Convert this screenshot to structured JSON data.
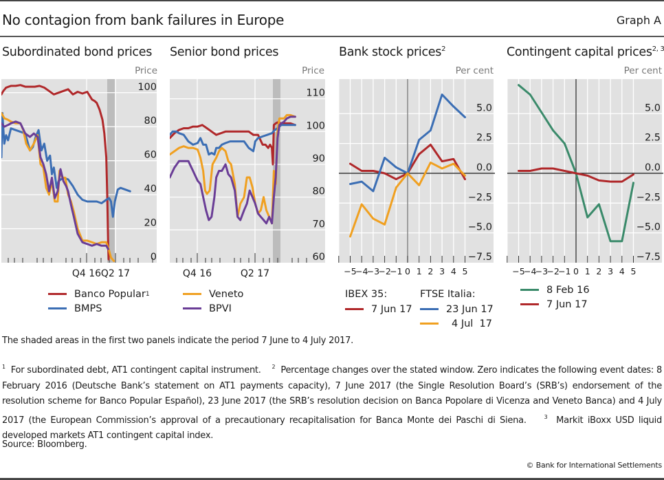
{
  "header": {
    "title": "No contagion from bank failures in Europe",
    "graph_label": "Graph A"
  },
  "colors": {
    "red": "#b0282a",
    "blue": "#3b6eb4",
    "orange": "#f0a020",
    "purple": "#6a3d96",
    "green": "#3a8a6a",
    "plot_bg": "#e1e1e1",
    "shade": "#bcbcbc"
  },
  "panels": [
    {
      "title": "Subordinated bond prices",
      "sup": "",
      "unit": "Price"
    },
    {
      "title": "Senior bond prices",
      "sup": "",
      "unit": "Price"
    },
    {
      "title": "Bank stock prices",
      "sup": "2",
      "unit": "Per cent"
    },
    {
      "title": "Contingent capital prices",
      "sup": "2, 3",
      "unit": "Per cent"
    }
  ],
  "legends": {
    "panel1": [
      {
        "label": "Banco Popular",
        "sup": "1",
        "color": "#b0282a"
      },
      {
        "label": "BMPS",
        "sup": "",
        "color": "#3b6eb4"
      }
    ],
    "panel2": [
      {
        "label": "Veneto",
        "sup": "",
        "color": "#f0a020"
      },
      {
        "label": "BPVI",
        "sup": "",
        "color": "#6a3d96"
      }
    ],
    "panel3": {
      "group1_title": "IBEX 35:",
      "group1": [
        {
          "label": "7 Jun 17",
          "color": "#b0282a"
        }
      ],
      "group2_title": "FTSE Italia:",
      "group2": [
        {
          "label": "23 Jun 17",
          "color": "#3b6eb4"
        },
        {
          "label": "4 Jul  17",
          "color": "#f0a020"
        }
      ]
    },
    "panel4": [
      {
        "label": "8 Feb 16",
        "color": "#3a8a6a"
      },
      {
        "label": "7 Jun 17",
        "color": "#b0282a"
      }
    ]
  },
  "notes": {
    "shaded": "The shaded areas in the first two panels indicate the period 7 June to 4 July 2017.",
    "fn1_mark": "1",
    "fn1": "For subordinated debt, AT1 contingent capital instrument.",
    "fn2_mark": "2",
    "fn2": "Percentage changes over the stated window. Zero indicates the following event dates: 8 February 2016 (Deutsche Bank’s statement on AT1 payments capacity), 7 June 2017 (the Single Resolution Board’s (SRB’s) endorsement of the resolution scheme for Banco Popular Español), 23 June 2017 (the SRB’s resolution decision on Banca Popolare di Vicenza and Veneto Banca) and 4 July 2017 (the European Commission’s approval of a precautionary recapitalisation for Banca Monte dei Paschi di Siena.",
    "fn3_mark": "3",
    "fn3": "Markit iBoxx USD liquid developed markets AT1 contingent capital index.",
    "source": "Source: Bloomberg.",
    "copyright": "© Bank for International Settlements"
  },
  "chart_data": [
    {
      "type": "line",
      "title": "Subordinated bond prices",
      "ylabel": "Price",
      "ylim": [
        0,
        108
      ],
      "yticks": [
        0,
        20,
        40,
        60,
        80,
        100
      ],
      "xlabel": "",
      "x_domain": [
        0,
        12
      ],
      "x_note": "months from Jul 2016 to Jul 2017 (approx.)",
      "xtick_labels": [
        {
          "x": 4,
          "label": "Q4 16"
        },
        {
          "x": 10,
          "label": "Q2 17"
        }
      ],
      "shaded_x": [
        11.1,
        11.9
      ],
      "grid": true,
      "series": [
        {
          "name": "Banco Popular",
          "color": "#b0282a",
          "x": [
            0,
            0.2,
            0.5,
            1,
            1.5,
            2,
            2.5,
            3,
            3.5,
            4,
            4.5,
            5,
            5.5,
            6,
            6.5,
            7,
            7.5,
            8,
            8.5,
            9,
            9.5,
            9.8,
            10,
            10.3,
            10.6,
            10.8,
            11,
            11.1,
            11.2,
            11.25
          ],
          "y": [
            99,
            101,
            103,
            104,
            104,
            104.5,
            103.5,
            103.5,
            103.5,
            104,
            103,
            101,
            99,
            100,
            101,
            102,
            99,
            100.5,
            99.5,
            100.5,
            96,
            95,
            94,
            90,
            84,
            76,
            62,
            40,
            10,
            2
          ]
        },
        {
          "name": "BMPS",
          "color": "#3b6eb4",
          "x": [
            0,
            0.1,
            0.3,
            0.5,
            0.7,
            1,
            1.5,
            2,
            2.5,
            3,
            3.3,
            3.6,
            3.9,
            4.2,
            4.5,
            4.8,
            5.1,
            5.3,
            5.5,
            5.8,
            6,
            6.5,
            7,
            7.5,
            8,
            8.5,
            9,
            9.5,
            10,
            10.5,
            11,
            11.3,
            11.5,
            11.7,
            11.9,
            12.2,
            12.5,
            13,
            13.5
          ],
          "y": [
            62,
            88,
            70,
            75,
            72,
            79,
            78,
            77,
            76,
            66,
            68,
            74,
            78,
            66,
            70,
            60,
            63,
            52,
            56,
            44,
            48,
            50,
            49,
            45,
            40,
            37,
            36,
            36,
            36,
            35,
            37,
            38,
            36,
            27,
            36,
            43,
            44,
            43,
            42
          ]
        },
        {
          "name": "Veneto",
          "color": "#f0a020",
          "x": [
            0,
            0.3,
            0.7,
            1,
            1.5,
            2,
            2.3,
            2.6,
            3,
            3.4,
            3.8,
            4.1,
            4.4,
            4.7,
            5,
            5.3,
            5.6,
            5.9,
            6.1,
            6.4,
            6.7,
            7,
            7.3,
            7.6,
            8,
            8.5,
            9,
            9.5,
            10,
            10.5,
            11,
            11.2,
            11.5,
            11.8
          ],
          "y": [
            88,
            85,
            84,
            83,
            82,
            82,
            78,
            70,
            66,
            70,
            75,
            58,
            56,
            44,
            40,
            48,
            36,
            36,
            54,
            50,
            50,
            40,
            36,
            30,
            20,
            13,
            13,
            12,
            11,
            12,
            12,
            9,
            3,
            1
          ]
        },
        {
          "name": "BPVI",
          "color": "#6a3d96",
          "x": [
            0,
            0.3,
            0.7,
            1,
            1.5,
            2,
            2.5,
            3,
            3.4,
            3.8,
            4.1,
            4.4,
            4.7,
            5,
            5.3,
            5.6,
            5.9,
            6.2,
            6.5,
            6.8,
            7,
            7.3,
            7.6,
            8,
            8.5,
            9,
            9.5,
            10,
            10.5,
            11,
            11.2
          ],
          "y": [
            82,
            80,
            81,
            82,
            83,
            82,
            76,
            74,
            76,
            74,
            62,
            58,
            52,
            42,
            50,
            38,
            42,
            55,
            48,
            45,
            42,
            34,
            27,
            17,
            12,
            11,
            10,
            11,
            10,
            10,
            8
          ]
        }
      ]
    },
    {
      "type": "line",
      "title": "Senior bond prices",
      "ylabel": "Price",
      "ylim": [
        60,
        116
      ],
      "yticks": [
        60,
        70,
        80,
        90,
        100,
        110
      ],
      "xlabel": "",
      "x_domain": [
        0,
        12
      ],
      "xtick_labels": [
        {
          "x": 4,
          "label": "Q4 16"
        },
        {
          "x": 10,
          "label": "Q2 17"
        }
      ],
      "shaded_x": [
        11.1,
        11.9
      ],
      "grid": true,
      "series": [
        {
          "name": "Banco Popular",
          "color": "#b0282a",
          "x": [
            0,
            0.5,
            1,
            1.5,
            2,
            2.5,
            3,
            3.5,
            4,
            4.5,
            5,
            5.5,
            6,
            6.5,
            7,
            7.5,
            8,
            8.5,
            9,
            9.5,
            10,
            10.3,
            10.6,
            10.8,
            11,
            11.1,
            11.2,
            11.4,
            11.6,
            12,
            12.5,
            13,
            13.5
          ],
          "y": [
            98,
            99.5,
            100.5,
            101,
            101,
            101.5,
            101.5,
            102,
            101,
            100,
            99,
            99.5,
            100,
            100,
            100,
            100,
            100,
            100,
            99,
            99,
            96,
            96,
            95,
            96,
            95,
            90,
            102,
            102.5,
            102.8,
            102.5,
            102.5,
            102.5,
            102
          ]
        },
        {
          "name": "BMPS",
          "color": "#3b6eb4",
          "x": [
            0,
            0.3,
            0.7,
            1,
            1.5,
            2,
            2.5,
            3,
            3.3,
            3.6,
            3.9,
            4.2,
            4.5,
            4.8,
            5,
            5.3,
            5.6,
            6,
            6.5,
            7,
            7.5,
            8,
            8.5,
            9,
            9.2,
            9.5,
            10,
            10.5,
            11,
            11.3,
            11.6,
            12,
            12.5,
            13,
            13.5
          ],
          "y": [
            99,
            100,
            100,
            99.5,
            99,
            97,
            96,
            96.5,
            98,
            96,
            96,
            93,
            93.5,
            93,
            95,
            95,
            96,
            96.5,
            97,
            97,
            97,
            97,
            95,
            94,
            97,
            98,
            98.5,
            99,
            99.5,
            100.5,
            101,
            102,
            102,
            102,
            102
          ]
        },
        {
          "name": "Veneto",
          "color": "#f0a020",
          "x": [
            0,
            0.5,
            1,
            1.5,
            2,
            2.5,
            3,
            3.3,
            3.6,
            3.8,
            4,
            4.3,
            4.6,
            5,
            5.3,
            5.6,
            6,
            6.3,
            6.6,
            7,
            7.3,
            7.6,
            8,
            8.3,
            8.6,
            8.9,
            9.2,
            9.5,
            9.8,
            10.1,
            10.4,
            10.7,
            11,
            11.2,
            11.4,
            11.6,
            11.8,
            12,
            12.3,
            12.6,
            13,
            13.5
          ],
          "y": [
            93,
            94,
            95,
            95.5,
            95,
            95,
            94.5,
            92,
            88,
            82,
            81,
            82,
            90,
            92,
            94,
            95,
            94,
            91,
            90,
            84,
            74,
            78,
            80,
            86,
            86,
            83,
            78,
            75,
            76,
            80,
            76,
            74,
            72,
            88,
            84,
            100,
            104,
            104,
            104,
            105,
            105,
            104.5
          ]
        },
        {
          "name": "BPVI",
          "color": "#6a3d96",
          "x": [
            0,
            0.5,
            1,
            1.5,
            2,
            2.5,
            3,
            3.3,
            3.6,
            3.9,
            4.2,
            4.5,
            4.8,
            5,
            5.3,
            5.6,
            6,
            6.3,
            6.6,
            7,
            7.3,
            7.6,
            8,
            8.3,
            8.6,
            8.9,
            9.2,
            9.5,
            9.8,
            10.1,
            10.4,
            10.7,
            11,
            11.2,
            11.4,
            11.6,
            11.8,
            12,
            12.3,
            12.6,
            13,
            13.5
          ],
          "y": [
            86,
            89,
            91,
            91,
            91,
            88,
            85,
            84,
            80,
            76,
            73,
            74,
            80,
            86,
            88,
            88,
            90,
            87,
            86,
            82,
            74,
            73,
            76,
            78,
            82,
            80,
            78,
            75,
            74,
            73,
            72,
            74,
            72,
            80,
            86,
            98,
            102,
            102.5,
            103,
            104,
            104.5,
            104.5
          ]
        }
      ]
    },
    {
      "type": "line",
      "title": "Bank stock prices",
      "ylabel": "Per cent",
      "ylim": [
        -7.5,
        7.9
      ],
      "yticks": [
        -7.5,
        -5.0,
        -2.5,
        0.0,
        2.5,
        5.0
      ],
      "xlabel": "",
      "x": [
        -5,
        -4,
        -3,
        -2,
        -1,
        0,
        1,
        2,
        3,
        4,
        5
      ],
      "xlim": [
        -6,
        6
      ],
      "grid": true,
      "series": [
        {
          "name": "IBEX 35: 7 Jun 17",
          "color": "#b0282a",
          "values": [
            0.8,
            0.2,
            0.2,
            0.0,
            -0.5,
            0.0,
            1.6,
            2.4,
            1.0,
            1.2,
            -0.5
          ]
        },
        {
          "name": "FTSE Italia: 23 Jun 17",
          "color": "#3b6eb4",
          "values": [
            -0.9,
            -0.7,
            -1.5,
            1.3,
            0.5,
            0.0,
            2.8,
            3.6,
            6.6,
            5.6,
            4.7
          ]
        },
        {
          "name": "FTSE Italia: 4 Jul 17",
          "color": "#f0a020",
          "values": [
            -5.3,
            -2.6,
            -3.8,
            -4.3,
            -1.2,
            0.0,
            -1.0,
            0.9,
            0.4,
            0.8,
            -0.2
          ]
        }
      ]
    },
    {
      "type": "line",
      "title": "Contingent capital prices",
      "ylabel": "Per cent",
      "ylim": [
        -7.5,
        7.9
      ],
      "yticks": [
        -7.5,
        -5.0,
        -2.5,
        0.0,
        2.5,
        5.0
      ],
      "xlabel": "",
      "x": [
        -5,
        -4,
        -3,
        -2,
        -1,
        0,
        1,
        2,
        3,
        4,
        5
      ],
      "xlim": [
        -6,
        6
      ],
      "grid": true,
      "series": [
        {
          "name": "8 Feb 16",
          "color": "#3a8a6a",
          "values": [
            7.4,
            6.6,
            5.1,
            3.6,
            2.5,
            0.0,
            -3.7,
            -2.6,
            -5.7,
            -5.7,
            -0.8
          ]
        },
        {
          "name": "7 Jun 17",
          "color": "#b0282a",
          "values": [
            0.2,
            0.2,
            0.4,
            0.4,
            0.2,
            0.0,
            -0.2,
            -0.6,
            -0.7,
            -0.7,
            -0.1
          ]
        }
      ]
    }
  ]
}
